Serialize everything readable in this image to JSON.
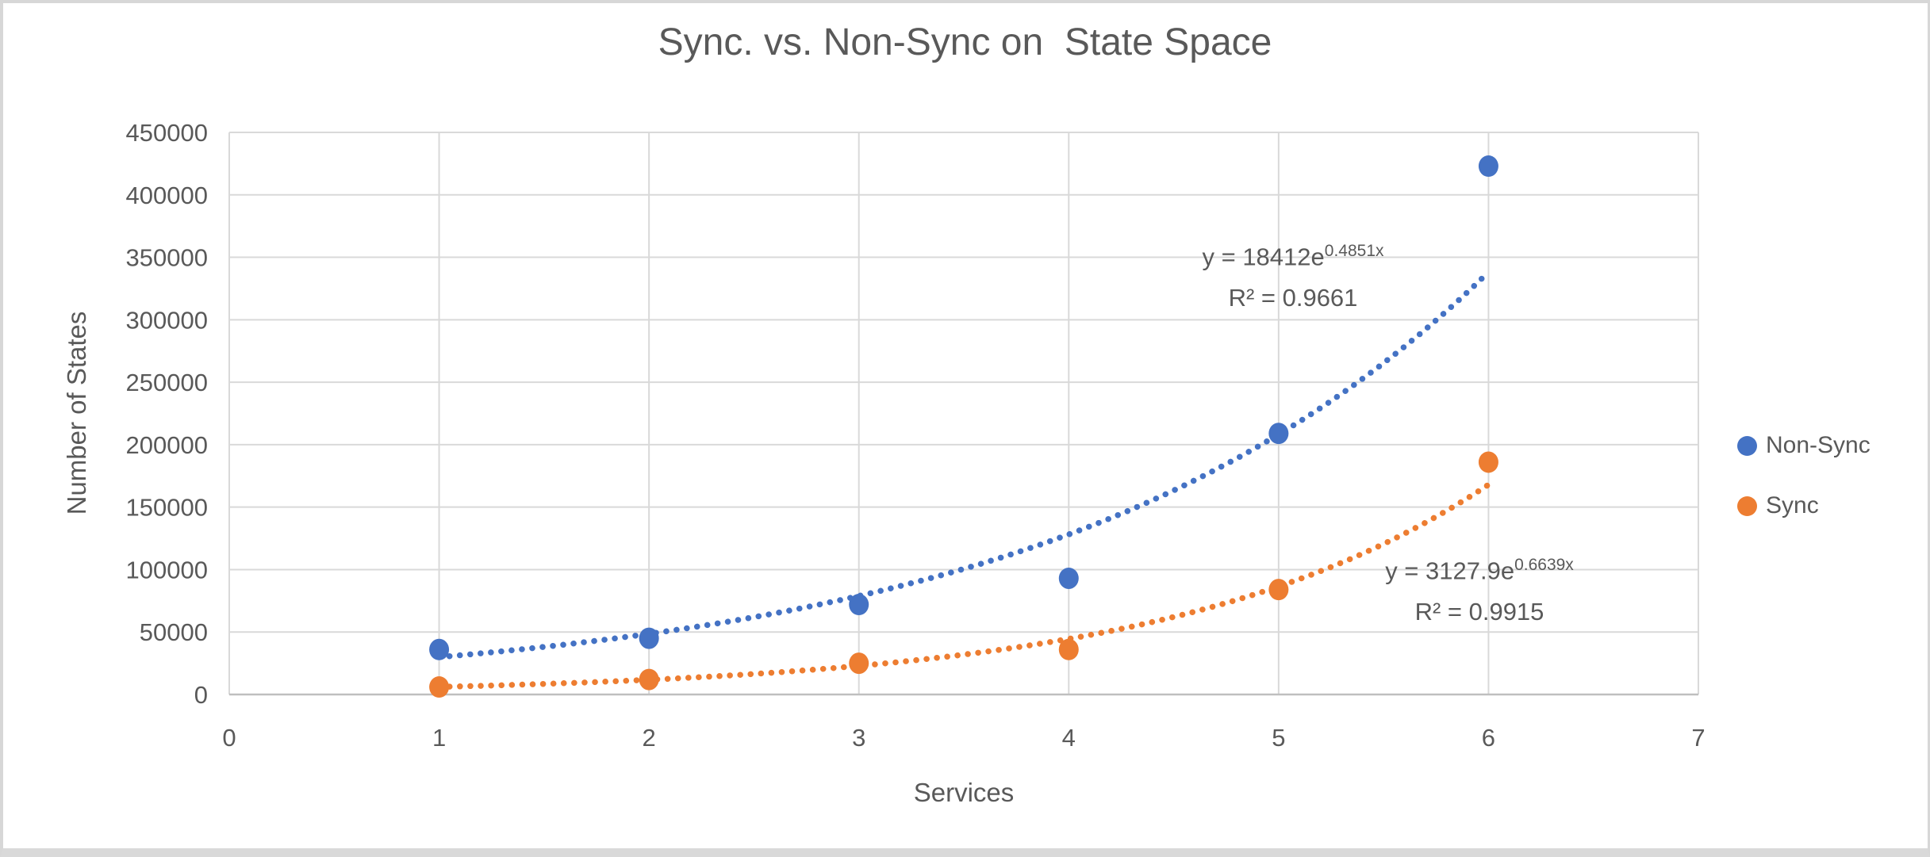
{
  "window": {
    "background": "#ffffff",
    "border_color": "#d7d7d7",
    "bottom_edge_color": "#d9d9d9"
  },
  "chart_data": {
    "type": "scatter",
    "title": "Sync. vs. Non-Sync on  State Space",
    "xlabel": "Services",
    "ylabel": "Number of States",
    "xlim": [
      0,
      7
    ],
    "ylim": [
      0,
      450000
    ],
    "x_ticks": [
      0,
      1,
      2,
      3,
      4,
      5,
      6,
      7
    ],
    "y_ticks": [
      0,
      50000,
      100000,
      150000,
      200000,
      250000,
      300000,
      350000,
      400000,
      450000
    ],
    "grid": true,
    "legend_position": "right",
    "colors": {
      "gridline": "#d9d9d9",
      "axis_line": "#bfbfbf",
      "text": "#595959"
    },
    "series": [
      {
        "name": "Non-Sync",
        "color": "#4472c4",
        "x": [
          1,
          2,
          3,
          4,
          5,
          6
        ],
        "y": [
          36000,
          45000,
          72000,
          93000,
          209000,
          423000
        ],
        "trendline": {
          "type": "exponential",
          "a": 18412,
          "b": 0.4851,
          "equation": "y = 18412e^0.4851x",
          "eq_base": "y = 18412e",
          "eq_exp": "0.4851x",
          "r2_label": "R² = 0.9661"
        }
      },
      {
        "name": "Sync",
        "color": "#ed7d31",
        "x": [
          1,
          2,
          3,
          4,
          5,
          6
        ],
        "y": [
          6000,
          12000,
          25000,
          36000,
          84000,
          186000
        ],
        "trendline": {
          "type": "exponential",
          "a": 3127.9,
          "b": 0.6639,
          "equation": "y = 3127.9e^0.6639x",
          "eq_base": "y = 3127.9e",
          "eq_exp": "0.6639x",
          "r2_label": "R² = 0.9915"
        }
      }
    ]
  }
}
